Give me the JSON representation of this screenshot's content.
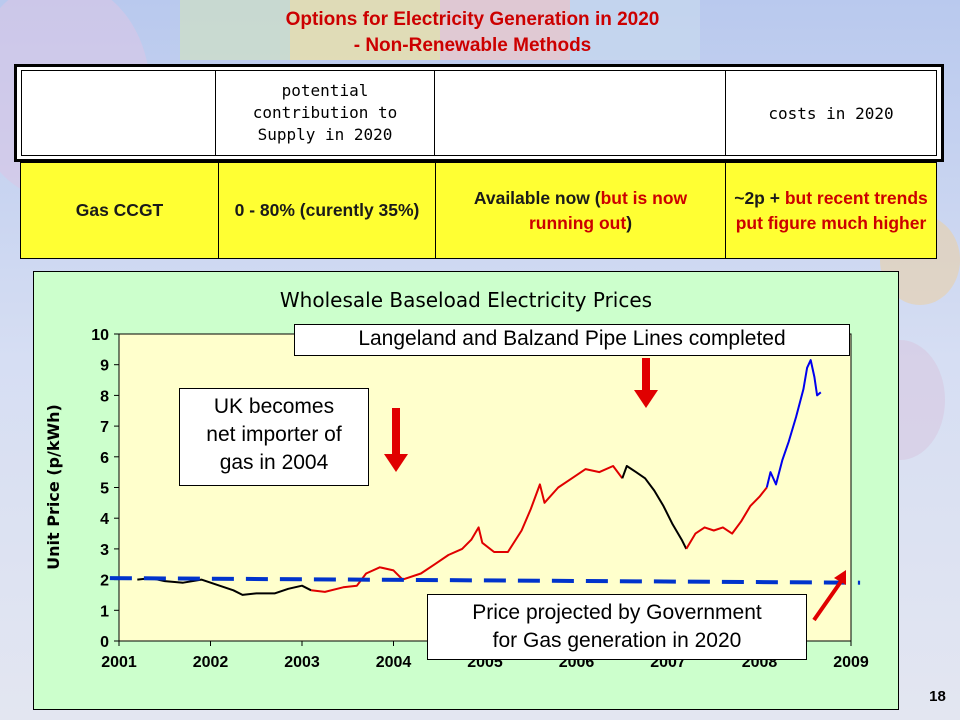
{
  "slide": {
    "title_line1": "Options for Electricity Generation in 2020",
    "title_line2": "- Non-Renewable Methods",
    "page_number": "18"
  },
  "table": {
    "headers": [
      "",
      "potential contribution to Supply in 2020",
      "",
      "costs in 2020"
    ],
    "header_lines": [
      "potential",
      "contribution to",
      "Supply in 2020"
    ],
    "row": {
      "method": "Gas CCGT",
      "contribution": "0 - 80% (curently 35%)",
      "availability_black1": "Available now (",
      "availability_red": "but is now running out",
      "availability_black2": ")",
      "cost_black": "~2p + ",
      "cost_red": "but recent trends put figure much higher"
    }
  },
  "callouts": {
    "pipelines": "Langeland and Balzand Pipe Lines completed",
    "importer_lines": [
      "UK becomes",
      "net importer of",
      "gas in 2004"
    ],
    "projection_lines": [
      "Price projected by Government",
      "for Gas generation in 2020"
    ]
  },
  "colors": {
    "title": "#cc0000",
    "table_row_bg": "#ffff33",
    "chart_bg": "#ccffcc",
    "plot_bg": "#ffffcc",
    "series_black": "#000000",
    "series_red": "#e00000",
    "series_blue": "#0000ee",
    "projection": "#0033cc",
    "arrow": "#e00000"
  },
  "chart_data": {
    "type": "line",
    "title": "Wholesale Baseload Electricity Prices",
    "xlabel": "",
    "ylabel": "Unit Price (p/kWh)",
    "xlim": [
      2001,
      2009
    ],
    "ylim": [
      0,
      10
    ],
    "x_ticks": [
      "2001",
      "2002",
      "2003",
      "2004",
      "2005",
      "2006",
      "2007",
      "2008",
      "2009"
    ],
    "y_ticks": [
      "0",
      "1",
      "2",
      "3",
      "4",
      "5",
      "6",
      "7",
      "8",
      "9",
      "10"
    ],
    "grid": false,
    "series": [
      {
        "color": "black",
        "points": [
          [
            2001.2,
            2.0
          ],
          [
            2001.35,
            2.05
          ],
          [
            2001.5,
            1.95
          ],
          [
            2001.7,
            1.9
          ],
          [
            2001.9,
            2.0
          ],
          [
            2002.1,
            1.8
          ],
          [
            2002.25,
            1.65
          ],
          [
            2002.35,
            1.5
          ],
          [
            2002.5,
            1.55
          ],
          [
            2002.7,
            1.55
          ],
          [
            2002.85,
            1.7
          ],
          [
            2003.0,
            1.8
          ],
          [
            2003.1,
            1.65
          ]
        ]
      },
      {
        "color": "red",
        "points": [
          [
            2003.1,
            1.65
          ],
          [
            2003.25,
            1.6
          ],
          [
            2003.45,
            1.75
          ],
          [
            2003.6,
            1.8
          ],
          [
            2003.7,
            2.2
          ],
          [
            2003.85,
            2.4
          ],
          [
            2004.0,
            2.3
          ],
          [
            2004.1,
            2.0
          ],
          [
            2004.3,
            2.2
          ],
          [
            2004.45,
            2.5
          ],
          [
            2004.6,
            2.8
          ],
          [
            2004.75,
            3.0
          ],
          [
            2004.85,
            3.3
          ],
          [
            2004.93,
            3.7
          ],
          [
            2004.97,
            3.2
          ],
          [
            2005.1,
            2.9
          ],
          [
            2005.25,
            2.9
          ],
          [
            2005.4,
            3.6
          ],
          [
            2005.5,
            4.3
          ],
          [
            2005.6,
            5.1
          ],
          [
            2005.65,
            4.5
          ],
          [
            2005.8,
            5.0
          ],
          [
            2005.95,
            5.3
          ],
          [
            2006.1,
            5.6
          ],
          [
            2006.25,
            5.5
          ],
          [
            2006.4,
            5.7
          ],
          [
            2006.5,
            5.3
          ]
        ]
      },
      {
        "color": "black",
        "points": [
          [
            2006.5,
            5.3
          ],
          [
            2006.55,
            5.7
          ],
          [
            2006.65,
            5.5
          ],
          [
            2006.75,
            5.3
          ],
          [
            2006.85,
            4.9
          ],
          [
            2006.95,
            4.4
          ],
          [
            2007.05,
            3.8
          ],
          [
            2007.15,
            3.3
          ],
          [
            2007.2,
            3.0
          ]
        ]
      },
      {
        "color": "red",
        "points": [
          [
            2007.2,
            3.0
          ],
          [
            2007.3,
            3.5
          ],
          [
            2007.4,
            3.7
          ],
          [
            2007.5,
            3.6
          ],
          [
            2007.6,
            3.7
          ],
          [
            2007.7,
            3.5
          ],
          [
            2007.8,
            3.9
          ],
          [
            2007.9,
            4.4
          ],
          [
            2008.0,
            4.7
          ],
          [
            2008.08,
            5.0
          ]
        ]
      },
      {
        "color": "blue",
        "points": [
          [
            2008.08,
            5.0
          ],
          [
            2008.12,
            5.5
          ],
          [
            2008.18,
            5.1
          ],
          [
            2008.25,
            5.9
          ],
          [
            2008.32,
            6.5
          ],
          [
            2008.4,
            7.3
          ],
          [
            2008.48,
            8.2
          ],
          [
            2008.52,
            8.9
          ],
          [
            2008.56,
            9.15
          ],
          [
            2008.6,
            8.6
          ],
          [
            2008.63,
            8.0
          ],
          [
            2008.67,
            8.1
          ]
        ]
      },
      {
        "color": "projection",
        "points": [
          [
            2000.9,
            2.05
          ],
          [
            2009.1,
            1.9
          ]
        ]
      }
    ]
  }
}
